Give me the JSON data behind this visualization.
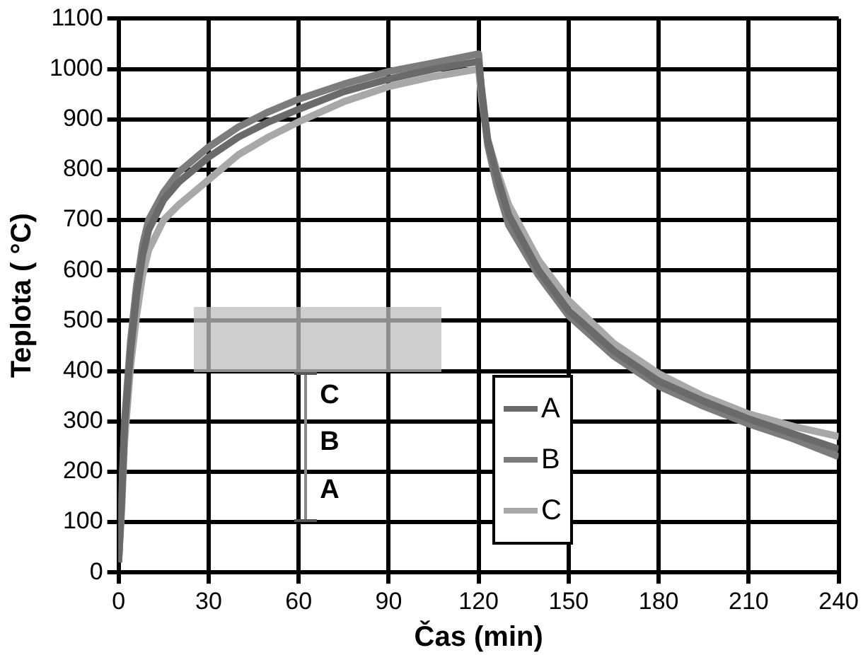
{
  "chart_data": {
    "type": "line",
    "xlabel": "Čas (min)",
    "ylabel": "Teplota ( °C)",
    "xlim": [
      0,
      240
    ],
    "xticks": [
      0,
      30,
      60,
      90,
      120,
      150,
      180,
      210,
      240
    ],
    "ylim": [
      0,
      1100
    ],
    "yticks": [
      0,
      100,
      200,
      300,
      400,
      500,
      600,
      700,
      800,
      900,
      1000,
      1100
    ],
    "grid": true,
    "legend": "bottom",
    "line_style": "solid",
    "annotations": [
      "C",
      "B",
      "A"
    ],
    "series": [
      {
        "name": "A",
        "color": "#6a6a6a",
        "x": [
          0,
          1,
          2,
          4,
          6,
          8,
          10,
          15,
          20,
          30,
          40,
          50,
          60,
          75,
          90,
          105,
          120,
          121,
          123,
          126,
          130,
          140,
          150,
          165,
          180,
          195,
          210,
          225,
          240
        ],
        "values": [
          20,
          140,
          290,
          440,
          550,
          630,
          680,
          740,
          775,
          825,
          865,
          895,
          920,
          955,
          980,
          1000,
          1015,
          960,
          860,
          790,
          710,
          600,
          520,
          440,
          380,
          340,
          305,
          275,
          245
        ]
      },
      {
        "name": "B",
        "color": "#7c7c7c",
        "x": [
          0,
          1,
          2,
          4,
          6,
          8,
          10,
          15,
          20,
          30,
          40,
          50,
          60,
          75,
          90,
          105,
          120,
          121,
          123,
          126,
          130,
          140,
          150,
          165,
          180,
          195,
          210,
          225,
          240
        ],
        "values": [
          20,
          150,
          300,
          460,
          570,
          650,
          700,
          755,
          795,
          845,
          885,
          915,
          940,
          970,
          995,
          1012,
          1030,
          950,
          850,
          770,
          690,
          590,
          510,
          430,
          370,
          330,
          295,
          265,
          230
        ]
      },
      {
        "name": "C",
        "color": "#a8a8a8",
        "x": [
          0,
          1,
          2,
          4,
          6,
          8,
          10,
          15,
          20,
          30,
          40,
          50,
          60,
          75,
          90,
          105,
          120,
          121,
          123,
          126,
          130,
          140,
          150,
          165,
          180,
          195,
          210,
          225,
          240
        ],
        "values": [
          20,
          120,
          260,
          410,
          510,
          590,
          640,
          700,
          730,
          780,
          830,
          865,
          895,
          935,
          965,
          985,
          1000,
          940,
          860,
          800,
          730,
          620,
          540,
          455,
          395,
          350,
          315,
          290,
          270
        ]
      }
    ]
  }
}
